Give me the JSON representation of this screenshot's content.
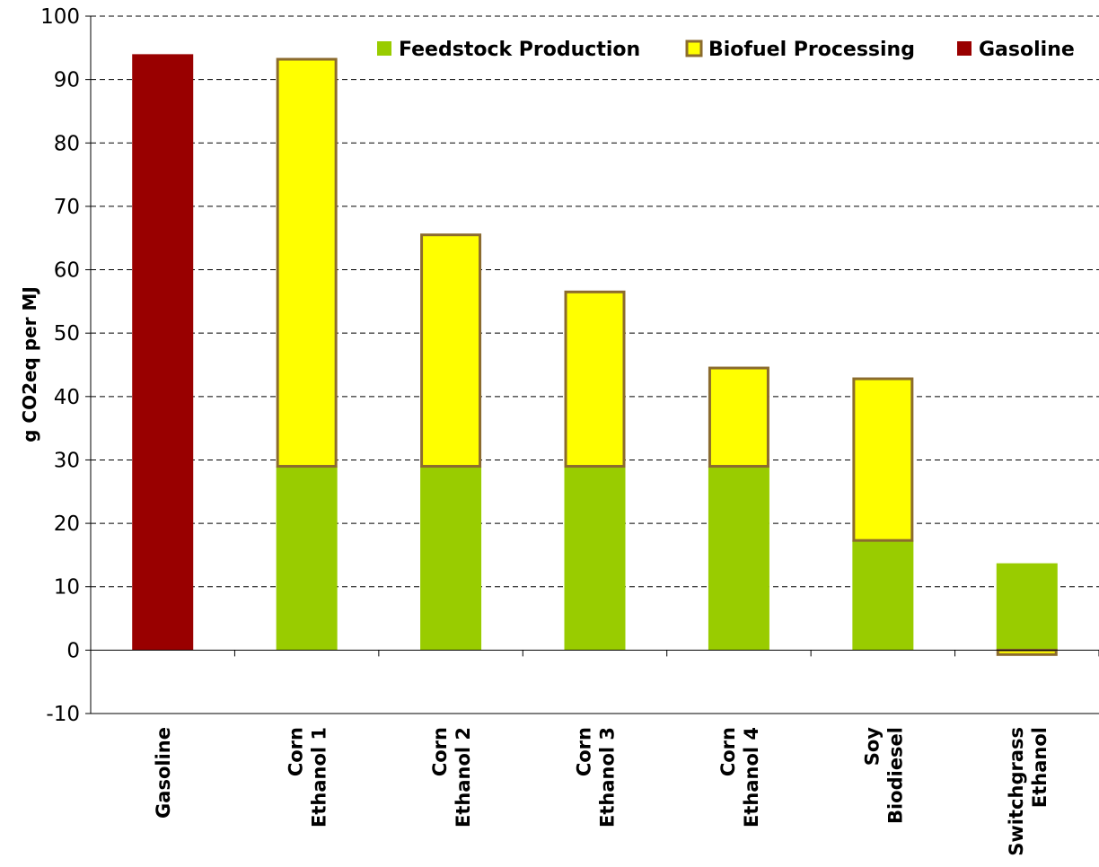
{
  "chart_data": {
    "type": "bar",
    "stacked": true,
    "title": "",
    "xlabel": "",
    "ylabel": "g CO2eq per MJ",
    "ylim": [
      -10,
      100
    ],
    "yticks": [
      -10,
      0,
      10,
      20,
      30,
      40,
      50,
      60,
      70,
      80,
      90,
      100
    ],
    "grid": "horizontal dashed",
    "legend_position": "top-right",
    "categories": [
      [
        "Gasoline"
      ],
      [
        "Corn",
        "Ethanol 1"
      ],
      [
        "Corn",
        "Ethanol 2"
      ],
      [
        "Corn",
        "Ethanol 3"
      ],
      [
        "Corn",
        "Ethanol 4"
      ],
      [
        "Soy",
        "Biodiesel"
      ],
      [
        "Switchgrass",
        "Ethanol"
      ]
    ],
    "series": [
      {
        "name": "Feedstock Production",
        "color": "#99cc00",
        "border": "none",
        "values": [
          0,
          29,
          29,
          29,
          29,
          17.3,
          13.7
        ]
      },
      {
        "name": "Biofuel Processing",
        "color": "#ffff00",
        "border": "#8b6b2e",
        "values": [
          0,
          64.2,
          36.5,
          27.5,
          15.5,
          25.5,
          -0.7
        ]
      },
      {
        "name": "Gasoline",
        "color": "#990000",
        "border": "none",
        "values": [
          94,
          0,
          0,
          0,
          0,
          0,
          0
        ]
      }
    ]
  }
}
